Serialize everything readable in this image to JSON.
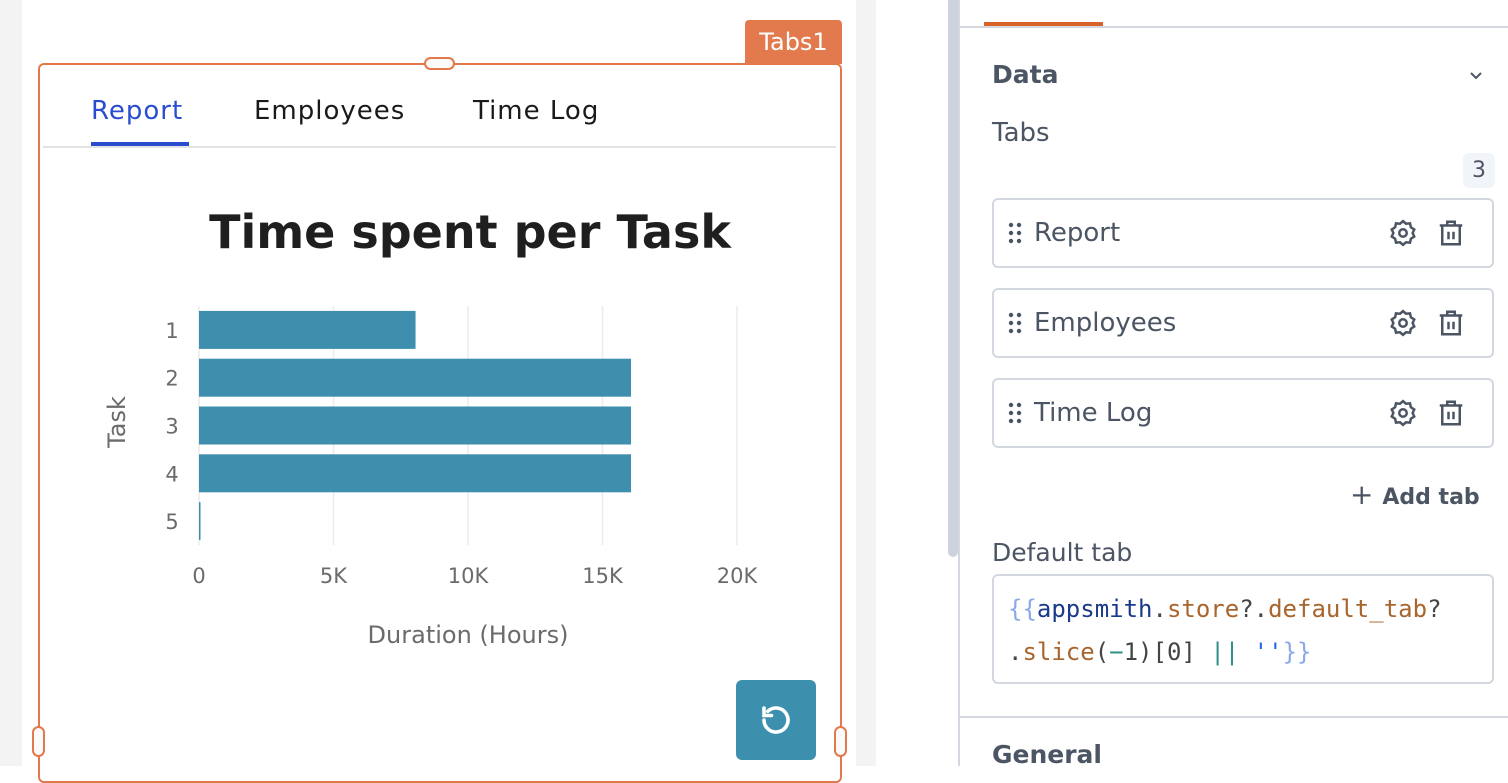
{
  "widget": {
    "name": "Tabs1",
    "tabs": [
      {
        "label": "Report",
        "active": true
      },
      {
        "label": "Employees"
      },
      {
        "label": "Time Log"
      }
    ]
  },
  "chart_data": {
    "type": "bar",
    "orientation": "horizontal",
    "title": "Time spent per Task",
    "xlabel": "Duration (Hours)",
    "ylabel": "Task",
    "categories": [
      "1",
      "2",
      "3",
      "4",
      "5"
    ],
    "values": [
      8050,
      16060,
      16060,
      16060,
      50
    ],
    "xlim": [
      0,
      20000
    ],
    "xticks": [
      "0",
      "5K",
      "10K",
      "15K",
      "20K"
    ],
    "grid": true,
    "color": "#3e8fae"
  },
  "refresh_icon": "rotate-ccw-icon",
  "panel": {
    "section": "Data",
    "tabs_label": "Tabs",
    "tab_count": "3",
    "tab_items": [
      {
        "label": "Report"
      },
      {
        "label": "Employees"
      },
      {
        "label": "Time Log"
      }
    ],
    "add_tab": "Add tab",
    "default_tab_label": "Default tab",
    "default_tab_code": {
      "open": "{{",
      "obj": "appsmith",
      "p1": ".",
      "store": "store",
      "q1": "?.",
      "dt": "default_tab",
      "q2": "?",
      "line2a": ".",
      "slice": "slice",
      "paren": "(",
      "minus": "−",
      "rest": "1)[0] ",
      "or": "||",
      "str": " ''",
      "close": "}}"
    },
    "general": "General",
    "accent": "#e3784a"
  }
}
